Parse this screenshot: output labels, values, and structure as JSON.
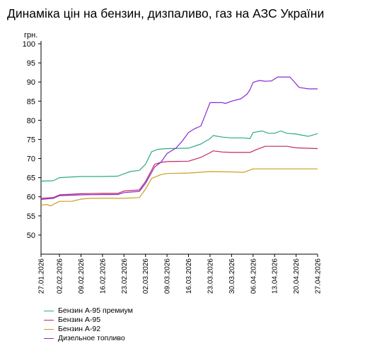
{
  "chart_data": {
    "type": "line",
    "title": "Динаміка цін на бензин, дизпаливо, газ на АЗС України",
    "ylabel": "грн.",
    "xlabel": "",
    "ylim": [
      45,
      100
    ],
    "yticks": [
      50,
      55,
      60,
      65,
      70,
      75,
      80,
      85,
      90,
      95,
      100
    ],
    "grid": false,
    "legend_position": "bottom-left",
    "xticks": [
      "27.01.2026",
      "02.02.2026",
      "09.02.2026",
      "16.02.2026",
      "23.02.2026",
      "02.03.2026",
      "09.03.2026",
      "16.03.2026",
      "23.03.2026",
      "30.03.2026",
      "06.04.2026",
      "13.04.2026",
      "20.04.2026",
      "27.04.2026"
    ],
    "series": [
      {
        "name": "Бензин А-95 премиум",
        "color": "#2aaa88",
        "points": [
          [
            "27.01.2026",
            64.1
          ],
          [
            "31.01.2026",
            64.2
          ],
          [
            "02.02.2026",
            65.0
          ],
          [
            "09.02.2026",
            65.3
          ],
          [
            "16.02.2026",
            65.3
          ],
          [
            "21.02.2026",
            65.4
          ],
          [
            "23.02.2026",
            66.0
          ],
          [
            "25.02.2026",
            66.6
          ],
          [
            "28.02.2026",
            66.9
          ],
          [
            "02.03.2026",
            68.5
          ],
          [
            "04.03.2026",
            71.8
          ],
          [
            "06.03.2026",
            72.4
          ],
          [
            "09.03.2026",
            72.6
          ],
          [
            "16.03.2026",
            72.7
          ],
          [
            "20.03.2026",
            73.8
          ],
          [
            "23.03.2026",
            75.2
          ],
          [
            "24.03.2026",
            76.0
          ],
          [
            "27.03.2026",
            75.6
          ],
          [
            "30.03.2026",
            75.4
          ],
          [
            "03.04.2026",
            75.4
          ],
          [
            "05.04.2026",
            75.2
          ],
          [
            "06.04.2026",
            76.8
          ],
          [
            "09.04.2026",
            77.2
          ],
          [
            "11.04.2026",
            76.6
          ],
          [
            "13.04.2026",
            76.6
          ],
          [
            "15.04.2026",
            77.2
          ],
          [
            "17.04.2026",
            76.6
          ],
          [
            "20.04.2026",
            76.4
          ],
          [
            "24.04.2026",
            75.8
          ],
          [
            "27.04.2026",
            76.5
          ]
        ]
      },
      {
        "name": "Бензин А-95",
        "color": "#c0286a",
        "points": [
          [
            "27.01.2026",
            59.6
          ],
          [
            "31.01.2026",
            59.8
          ],
          [
            "02.02.2026",
            60.5
          ],
          [
            "09.02.2026",
            60.8
          ],
          [
            "16.02.2026",
            60.9
          ],
          [
            "21.02.2026",
            60.9
          ],
          [
            "23.02.2026",
            61.5
          ],
          [
            "28.02.2026",
            61.8
          ],
          [
            "02.03.2026",
            64.0
          ],
          [
            "05.03.2026",
            68.5
          ],
          [
            "07.03.2026",
            69.0
          ],
          [
            "09.03.2026",
            69.2
          ],
          [
            "16.03.2026",
            69.3
          ],
          [
            "20.03.2026",
            70.3
          ],
          [
            "23.03.2026",
            71.5
          ],
          [
            "24.03.2026",
            72.0
          ],
          [
            "27.03.2026",
            71.7
          ],
          [
            "30.03.2026",
            71.6
          ],
          [
            "05.04.2026",
            71.6
          ],
          [
            "07.04.2026",
            72.3
          ],
          [
            "10.04.2026",
            73.2
          ],
          [
            "13.04.2026",
            73.2
          ],
          [
            "17.04.2026",
            73.2
          ],
          [
            "20.04.2026",
            72.8
          ],
          [
            "27.04.2026",
            72.6
          ]
        ]
      },
      {
        "name": "Бензин А-92",
        "color": "#c8a020",
        "points": [
          [
            "27.01.2026",
            57.8
          ],
          [
            "29.01.2026",
            58.0
          ],
          [
            "30.01.2026",
            57.6
          ],
          [
            "02.02.2026",
            58.8
          ],
          [
            "06.02.2026",
            58.8
          ],
          [
            "09.02.2026",
            59.4
          ],
          [
            "12.02.2026",
            59.6
          ],
          [
            "16.02.2026",
            59.6
          ],
          [
            "23.02.2026",
            59.6
          ],
          [
            "28.02.2026",
            59.8
          ],
          [
            "02.03.2026",
            62.0
          ],
          [
            "04.03.2026",
            64.8
          ],
          [
            "07.03.2026",
            65.8
          ],
          [
            "09.03.2026",
            66.1
          ],
          [
            "16.03.2026",
            66.2
          ],
          [
            "23.03.2026",
            66.6
          ],
          [
            "30.03.2026",
            66.5
          ],
          [
            "03.04.2026",
            66.4
          ],
          [
            "06.04.2026",
            67.3
          ],
          [
            "13.04.2026",
            67.3
          ],
          [
            "20.04.2026",
            67.3
          ],
          [
            "27.04.2026",
            67.3
          ]
        ]
      },
      {
        "name": "Дизельное топливо",
        "color": "#8a2ad0",
        "points": [
          [
            "27.01.2026",
            59.3
          ],
          [
            "31.01.2026",
            59.6
          ],
          [
            "02.02.2026",
            60.3
          ],
          [
            "09.02.2026",
            60.5
          ],
          [
            "16.02.2026",
            60.6
          ],
          [
            "21.02.2026",
            60.6
          ],
          [
            "23.02.2026",
            61.1
          ],
          [
            "28.02.2026",
            61.4
          ],
          [
            "02.03.2026",
            63.5
          ],
          [
            "05.03.2026",
            67.8
          ],
          [
            "07.03.2026",
            69.0
          ],
          [
            "09.03.2026",
            71.3
          ],
          [
            "12.03.2026",
            72.8
          ],
          [
            "14.03.2026",
            74.6
          ],
          [
            "16.03.2026",
            76.8
          ],
          [
            "18.03.2026",
            77.8
          ],
          [
            "20.03.2026",
            78.5
          ],
          [
            "21.03.2026",
            80.5
          ],
          [
            "23.03.2026",
            84.6
          ],
          [
            "24.03.2026",
            84.6
          ],
          [
            "27.03.2026",
            84.6
          ],
          [
            "28.03.2026",
            84.4
          ],
          [
            "30.03.2026",
            85.0
          ],
          [
            "02.04.2026",
            85.6
          ],
          [
            "04.04.2026",
            86.8
          ],
          [
            "05.04.2026",
            88.0
          ],
          [
            "06.04.2026",
            89.9
          ],
          [
            "08.04.2026",
            90.4
          ],
          [
            "10.04.2026",
            90.2
          ],
          [
            "12.04.2026",
            90.3
          ],
          [
            "14.04.2026",
            91.3
          ],
          [
            "18.04.2026",
            91.3
          ],
          [
            "20.04.2026",
            89.5
          ],
          [
            "21.04.2026",
            88.6
          ],
          [
            "24.04.2026",
            88.2
          ],
          [
            "27.04.2026",
            88.2
          ]
        ]
      }
    ]
  }
}
